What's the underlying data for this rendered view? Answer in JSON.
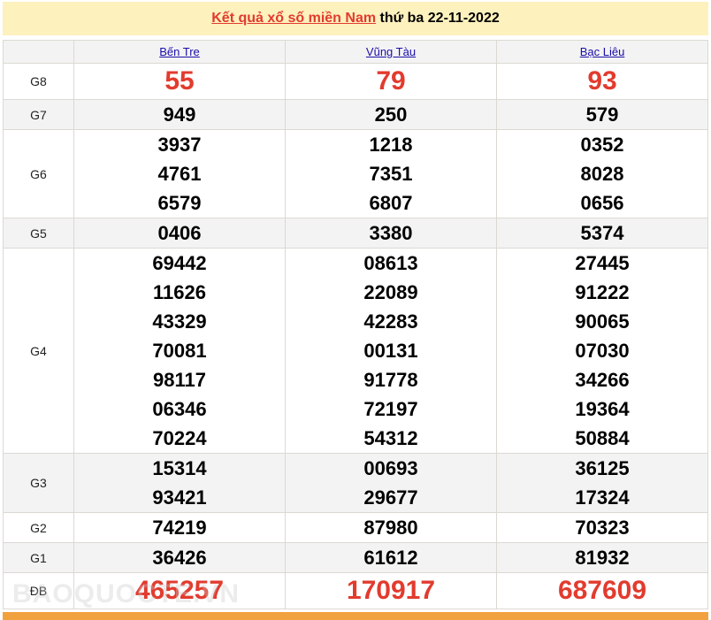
{
  "header": {
    "title_link": "Kết quả xổ số miền Nam",
    "title_rest": " thứ ba 22-11-2022"
  },
  "provinces": [
    "Bến Tre",
    "Vũng Tàu",
    "Bạc Liêu"
  ],
  "prizes": [
    {
      "label": "G8",
      "values": [
        [
          "55"
        ],
        [
          "79"
        ],
        [
          "93"
        ]
      ]
    },
    {
      "label": "G7",
      "values": [
        [
          "949"
        ],
        [
          "250"
        ],
        [
          "579"
        ]
      ]
    },
    {
      "label": "G6",
      "values": [
        [
          "3937",
          "4761",
          "6579"
        ],
        [
          "1218",
          "7351",
          "6807"
        ],
        [
          "0352",
          "8028",
          "0656"
        ]
      ]
    },
    {
      "label": "G5",
      "values": [
        [
          "0406"
        ],
        [
          "3380"
        ],
        [
          "5374"
        ]
      ]
    },
    {
      "label": "G4",
      "values": [
        [
          "69442",
          "11626",
          "43329",
          "70081",
          "98117",
          "06346",
          "70224"
        ],
        [
          "08613",
          "22089",
          "42283",
          "00131",
          "91778",
          "72197",
          "54312"
        ],
        [
          "27445",
          "91222",
          "90065",
          "07030",
          "34266",
          "19364",
          "50884"
        ]
      ]
    },
    {
      "label": "G3",
      "values": [
        [
          "15314",
          "93421"
        ],
        [
          "00693",
          "29677"
        ],
        [
          "36125",
          "17324"
        ]
      ]
    },
    {
      "label": "G2",
      "values": [
        [
          "74219"
        ],
        [
          "87980"
        ],
        [
          "70323"
        ]
      ]
    },
    {
      "label": "G1",
      "values": [
        [
          "36426"
        ],
        [
          "61612"
        ],
        [
          "81932"
        ]
      ]
    },
    {
      "label": "ĐB",
      "values": [
        [
          "465257"
        ],
        [
          "170917"
        ],
        [
          "687609"
        ]
      ]
    }
  ],
  "watermark": "BAOQUOCTE.VN",
  "colors": {
    "highlight": "#e23b2e",
    "title_bg": "#fdf1bd",
    "link": "#1a0dab",
    "bottom_bar": "#f2a13f"
  }
}
